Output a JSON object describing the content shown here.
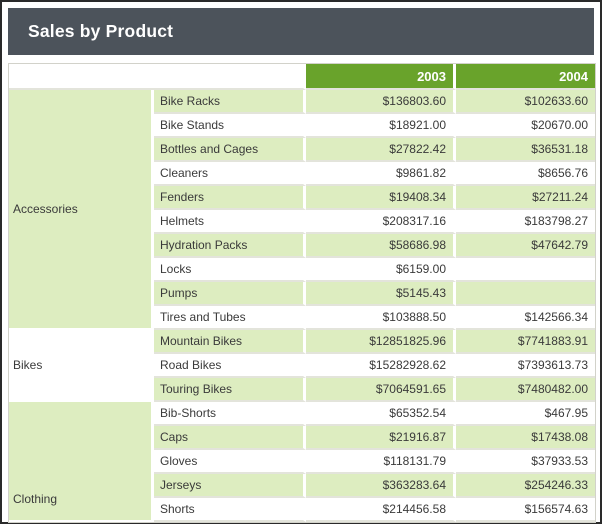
{
  "title": "Sales by Product",
  "colors": {
    "frame_border": "#2a2a2a",
    "title_bar_bg": "#4c535b",
    "title_text": "#ffffff",
    "header_green": "#69a32b",
    "row_band_green": "#ddedc0",
    "row_band_white": "#ffffff",
    "grid_line": "#e3e4db",
    "cell_text": "#3a3a3a"
  },
  "table": {
    "corner_header": "",
    "col_headers": [
      "2003",
      "2004"
    ],
    "groups": [
      {
        "name": "Accessories",
        "rows": [
          {
            "product": "Bike Racks",
            "y2003": "$136803.60",
            "y2004": "$102633.60"
          },
          {
            "product": "Bike Stands",
            "y2003": "$18921.00",
            "y2004": "$20670.00"
          },
          {
            "product": "Bottles and Cages",
            "y2003": "$27822.42",
            "y2004": "$36531.18"
          },
          {
            "product": "Cleaners",
            "y2003": "$9861.82",
            "y2004": "$8656.76"
          },
          {
            "product": "Fenders",
            "y2003": "$19408.34",
            "y2004": "$27211.24"
          },
          {
            "product": "Helmets",
            "y2003": "$208317.16",
            "y2004": "$183798.27"
          },
          {
            "product": "Hydration Packs",
            "y2003": "$58686.98",
            "y2004": "$47642.79"
          },
          {
            "product": "Locks",
            "y2003": "$6159.00",
            "y2004": ""
          },
          {
            "product": "Pumps",
            "y2003": "$5145.43",
            "y2004": ""
          },
          {
            "product": "Tires and Tubes",
            "y2003": "$103888.50",
            "y2004": "$142566.34"
          }
        ]
      },
      {
        "name": "Bikes",
        "rows": [
          {
            "product": "Mountain Bikes",
            "y2003": "$12851825.96",
            "y2004": "$7741883.91"
          },
          {
            "product": "Road Bikes",
            "y2003": "$15282928.62",
            "y2004": "$7393613.73"
          },
          {
            "product": "Touring Bikes",
            "y2003": "$7064591.65",
            "y2004": "$7480482.00"
          }
        ]
      },
      {
        "name": "Clothing",
        "rows": [
          {
            "product": "Bib-Shorts",
            "y2003": "$65352.54",
            "y2004": "$467.95"
          },
          {
            "product": "Caps",
            "y2003": "$21916.87",
            "y2004": "$17438.08"
          },
          {
            "product": "Gloves",
            "y2003": "$118131.79",
            "y2004": "$37933.53"
          },
          {
            "product": "Jerseys",
            "y2003": "$363283.64",
            "y2004": "$254246.33"
          },
          {
            "product": "Shorts",
            "y2003": "$214456.58",
            "y2004": "$156574.63"
          }
        ]
      }
    ]
  }
}
